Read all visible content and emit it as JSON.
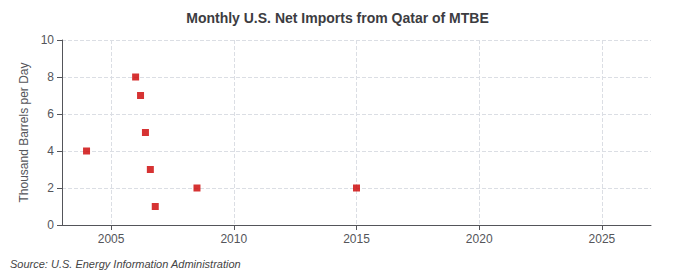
{
  "chart_data": {
    "type": "scatter",
    "title": "Monthly U.S. Net Imports from Qatar of MTBE",
    "ylabel": "Thousand Barrels per Day",
    "source": "Source: U.S. Energy Information Administration",
    "x": [
      2004.0,
      2006.0,
      2006.2,
      2006.4,
      2006.6,
      2006.8,
      2008.5,
      2015.0
    ],
    "values": [
      4.0,
      8.0,
      7.0,
      5.0,
      3.0,
      1.0,
      2.0,
      2.0
    ],
    "color": "#cc0000",
    "marker": "square",
    "xlim": [
      2003,
      2027
    ],
    "xticks": [
      2005,
      2010,
      2015,
      2020,
      2025
    ],
    "ylim": [
      0,
      10
    ],
    "yticks": [
      0,
      2,
      4,
      6,
      8,
      10
    ],
    "grid": true
  }
}
